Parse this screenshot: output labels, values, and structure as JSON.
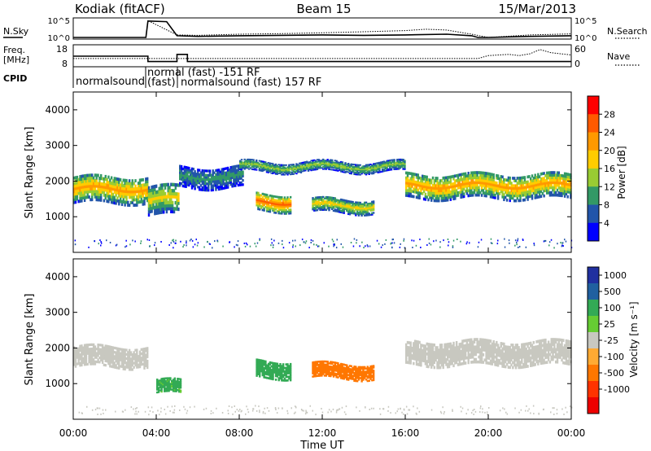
{
  "header": {
    "station": "Kodiak (fitACF)",
    "beam": "Beam 15",
    "date": "15/Mar/2013"
  },
  "noise_panel": {
    "left_label": "N.Sky",
    "right_label": "N.Search",
    "left_ticks": [
      "10^5",
      "10^0"
    ],
    "right_ticks": [
      "10^5",
      "10^0"
    ]
  },
  "freq_panel": {
    "left_label": "Freq.",
    "left_unit": "[MHz]",
    "right_label": "Nave",
    "left_ticks": [
      "18",
      "8"
    ],
    "right_ticks": [
      "60",
      "0"
    ]
  },
  "cpid": {
    "label": "CPID",
    "segments": [
      {
        "text": "normalsound"
      },
      {
        "text": "normal (fast) -151 RF"
      },
      {
        "text": "(fast)"
      },
      {
        "text": "normalsound (fast) 157 RF"
      }
    ]
  },
  "power_panel": {
    "ylabel": "Slant Range [km]",
    "yticks": [
      "4000",
      "3000",
      "2000",
      "1000"
    ],
    "colorbar": {
      "label": "Power [dB]",
      "ticks": [
        "28",
        "24",
        "20",
        "16",
        "12",
        "8",
        "4"
      ],
      "colors": [
        "#ff0000",
        "#ff5a00",
        "#ff9900",
        "#ffcc00",
        "#99cc33",
        "#339966",
        "#2255aa",
        "#0000ff"
      ]
    }
  },
  "velocity_panel": {
    "ylabel": "Slant Range [km]",
    "yticks": [
      "4000",
      "3000",
      "2000",
      "1000"
    ],
    "colorbar": {
      "label": "Velocity [m s⁻¹]",
      "ticks": [
        "1000",
        "500",
        "100",
        "25",
        "-25",
        "-100",
        "-500",
        "-1000"
      ],
      "colors": [
        "#2030a0",
        "#2060a0",
        "#33aa55",
        "#66cc33",
        "#c8c8c0",
        "#ffaa33",
        "#ff7700",
        "#ff3300",
        "#ee0000"
      ]
    }
  },
  "xaxis": {
    "label": "Time UT",
    "ticks": [
      "00:00",
      "04:00",
      "08:00",
      "12:00",
      "16:00",
      "20:00",
      "00:00"
    ]
  },
  "chart_data": [
    {
      "type": "line",
      "title": "Kodiak (fitACF)  Beam 15  15/Mar/2013",
      "series": [
        {
          "name": "N.Sky",
          "x": [
            0,
            3.5,
            3.6,
            4.5,
            5.0,
            6,
            8,
            10,
            12,
            14,
            16,
            18,
            19.2,
            19.5,
            20,
            22,
            24
          ],
          "values": [
            1,
            1,
            40000,
            25000,
            3,
            2,
            3,
            4,
            5,
            4,
            5,
            8,
            3,
            0.5,
            1,
            2,
            3
          ]
        },
        {
          "name": "N.Search",
          "x": [
            0,
            3.5,
            3.6,
            5.0,
            6,
            8,
            10,
            12,
            14,
            16,
            17,
            18,
            19.2,
            20,
            22,
            24
          ],
          "values": [
            1,
            1,
            50000,
            5,
            4,
            8,
            12,
            20,
            40,
            80,
            200,
            120,
            8,
            1,
            5,
            10
          ]
        }
      ],
      "ylim": [
        1,
        100000
      ],
      "xlim": [
        0,
        24
      ]
    },
    {
      "type": "line",
      "series": [
        {
          "name": "Freq.",
          "x": [
            0,
            3.6,
            3.6,
            5.0,
            5.0,
            5.5,
            5.5,
            24
          ],
          "values": [
            13,
            13,
            10,
            10,
            14,
            14,
            10,
            10
          ]
        },
        {
          "name": "Nave",
          "x": [
            0,
            19.5,
            20,
            21,
            21.5,
            22,
            22.5,
            23,
            23.5,
            24
          ],
          "values": [
            22,
            22,
            32,
            36,
            32,
            38,
            52,
            42,
            38,
            34
          ]
        }
      ],
      "ylim": [
        8,
        18
      ],
      "xlim": [
        0,
        24
      ]
    },
    {
      "type": "heatmap",
      "title": "Power [dB]",
      "xlim": [
        0,
        24
      ],
      "ylim": [
        0,
        4500
      ],
      "ylabel": "Slant Range [km]",
      "xlabel": "Time UT",
      "features": [
        {
          "t0": 0.0,
          "t1": 3.6,
          "r_center": 1750,
          "r_halfwidth": 380,
          "peak_db": 22
        },
        {
          "t0": 3.6,
          "t1": 5.1,
          "r_center": 1450,
          "r_halfwidth": 420,
          "peak_db": 18
        },
        {
          "t0": 5.1,
          "t1": 8.2,
          "r_center": 2100,
          "r_halfwidth": 300,
          "peak_db": 10
        },
        {
          "t0": 8.8,
          "t1": 10.5,
          "r_center": 1400,
          "r_halfwidth": 250,
          "peak_db": 26
        },
        {
          "t0": 11.5,
          "t1": 14.5,
          "r_center": 1300,
          "r_halfwidth": 200,
          "peak_db": 18
        },
        {
          "t0": 8.0,
          "t1": 16.0,
          "r_center": 2400,
          "r_halfwidth": 150,
          "peak_db": 14
        },
        {
          "t0": 16.0,
          "t1": 24.0,
          "r_center": 1850,
          "r_halfwidth": 350,
          "peak_db": 22
        }
      ]
    },
    {
      "type": "heatmap",
      "title": "Velocity [m s⁻¹]",
      "xlim": [
        0,
        24
      ],
      "ylim": [
        0,
        4500
      ],
      "ylabel": "Slant Range [km]",
      "xlabel": "Time UT",
      "features": [
        {
          "t0": 0.0,
          "t1": 3.6,
          "r_center": 1750,
          "r_halfwidth": 300,
          "velocity": 0
        },
        {
          "t0": 4.0,
          "t1": 5.2,
          "r_center": 900,
          "r_halfwidth": 200,
          "velocity": 150
        },
        {
          "t0": 8.8,
          "t1": 10.5,
          "r_center": 1400,
          "r_halfwidth": 250,
          "velocity": 300
        },
        {
          "t0": 11.5,
          "t1": 14.5,
          "r_center": 1350,
          "r_halfwidth": 220,
          "velocity": -200
        },
        {
          "t0": 16.0,
          "t1": 24.0,
          "r_center": 1850,
          "r_halfwidth": 350,
          "velocity": 0
        }
      ]
    }
  ]
}
